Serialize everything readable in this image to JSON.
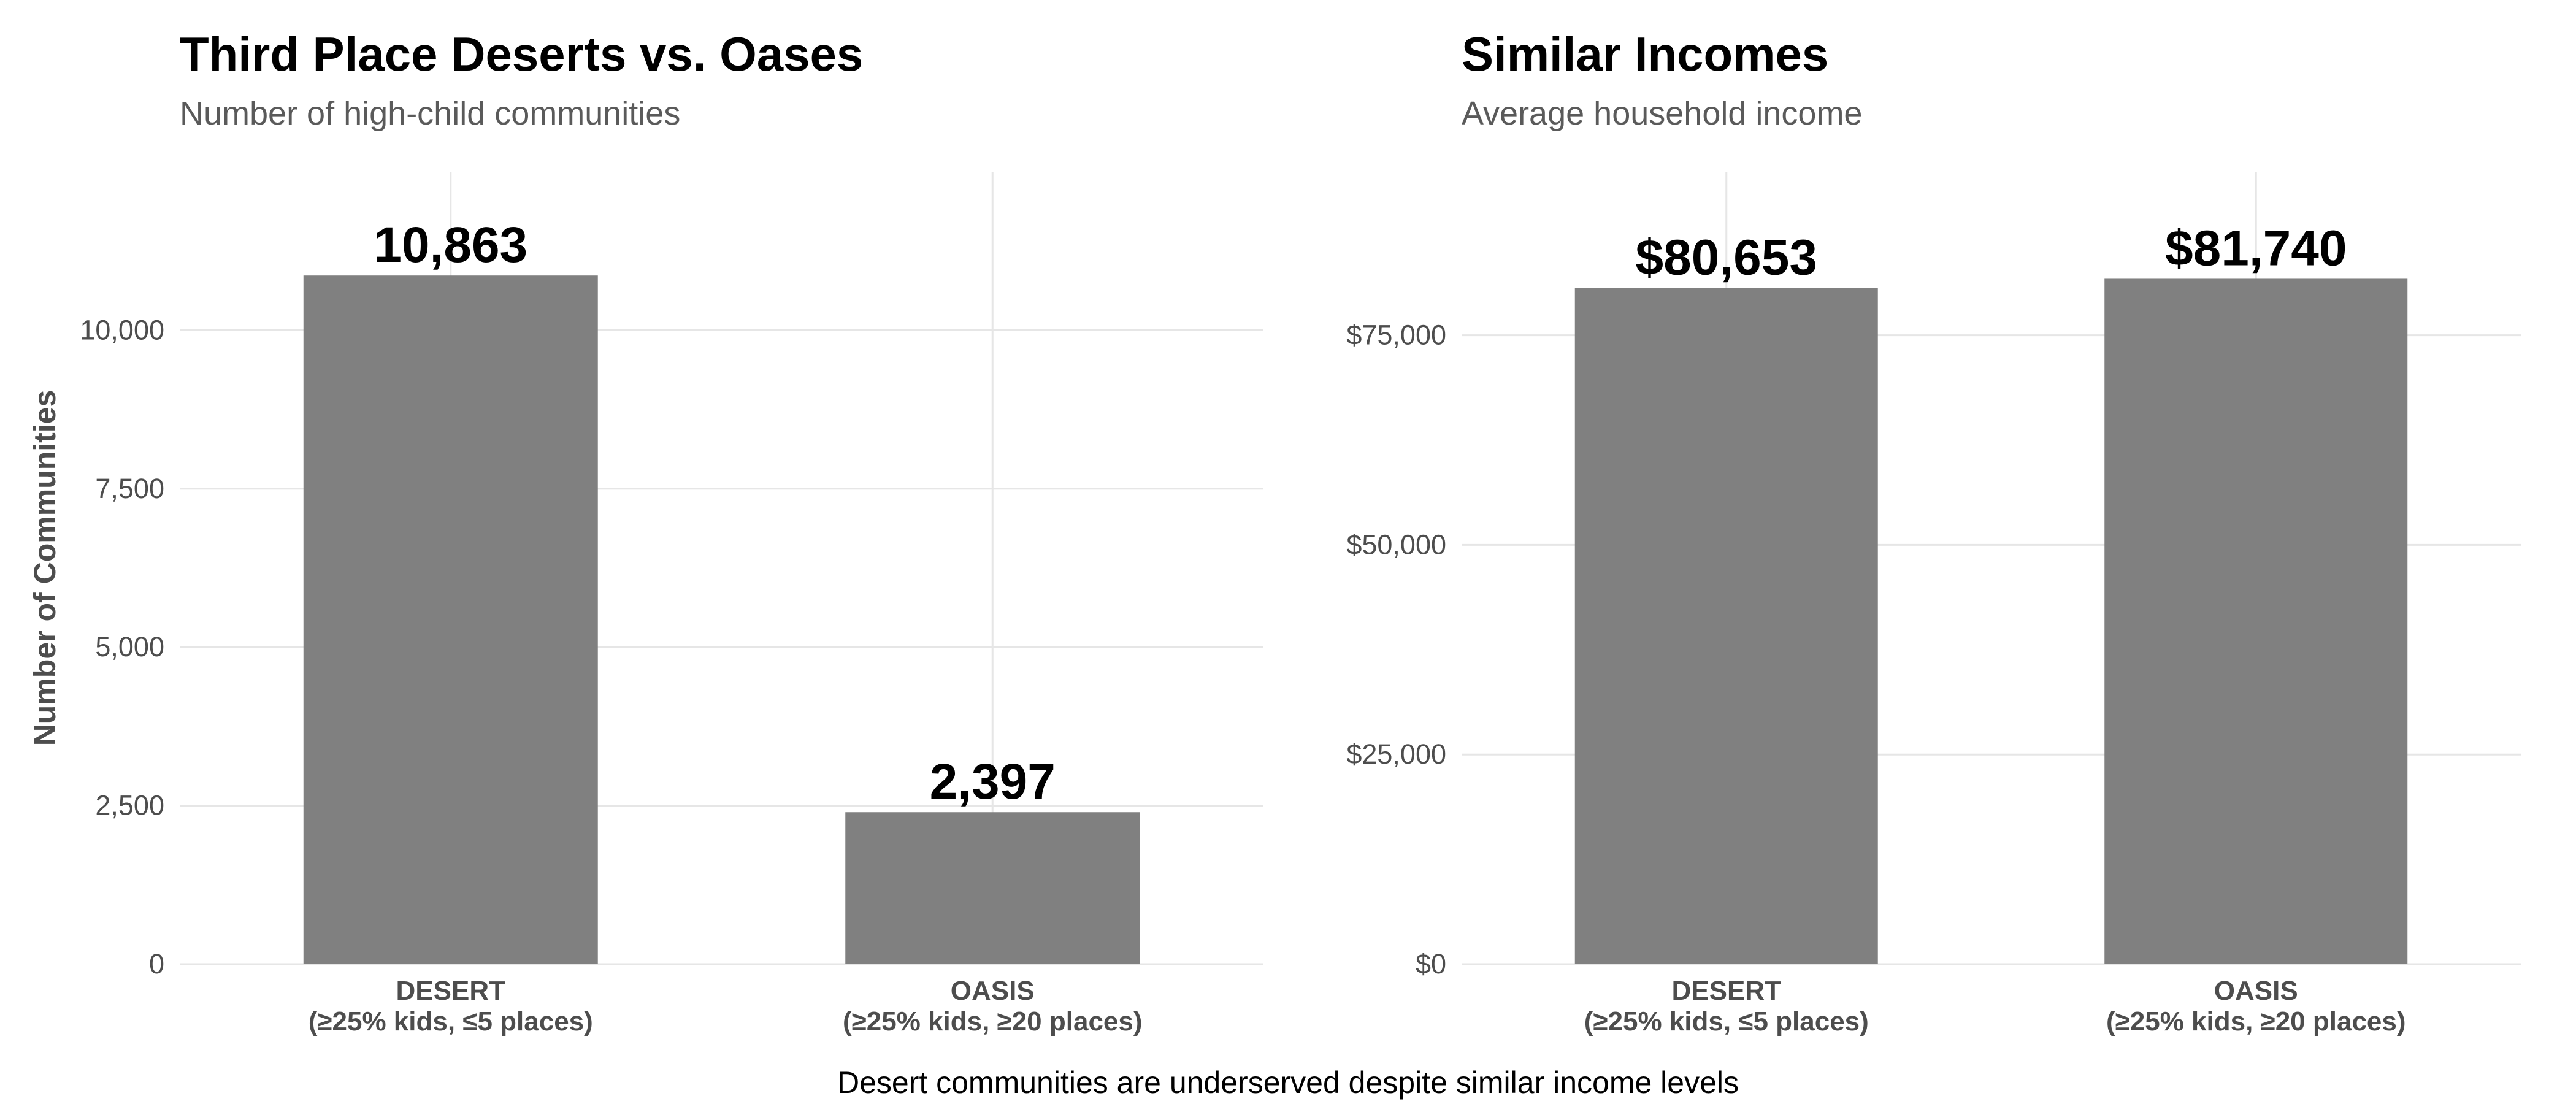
{
  "caption": "Desert communities are underserved despite similar income levels",
  "chart_data": [
    {
      "type": "bar",
      "title": "Third Place Deserts vs. Oases",
      "subtitle": "Number of high-child communities",
      "ylabel": "Number of Communities",
      "xlabel": "",
      "categories": [
        "DESERT",
        "OASIS"
      ],
      "category_sublabels": [
        "(≥25% kids, ≤5 places)",
        "(≥25% kids, ≥20 places)"
      ],
      "values": [
        10863,
        2397
      ],
      "value_labels": [
        "10,863",
        "2,397"
      ],
      "ylim": [
        0,
        12500
      ],
      "yticks": [
        0,
        2500,
        5000,
        7500,
        10000
      ],
      "ytick_labels": [
        "0",
        "2,500",
        "5,000",
        "7,500",
        "10,000"
      ],
      "grid": true,
      "bar_color": "#808080"
    },
    {
      "type": "bar",
      "title": "Similar Incomes",
      "subtitle": "Average household income",
      "ylabel": "",
      "xlabel": "",
      "categories": [
        "DESERT",
        "OASIS"
      ],
      "category_sublabels": [
        "(≥25% kids, ≤5 places)",
        "(≥25% kids, ≥20 places)"
      ],
      "values": [
        80653,
        81740
      ],
      "value_labels": [
        "$80,653",
        "$81,740"
      ],
      "ylim": [
        0,
        94500
      ],
      "yticks": [
        0,
        25000,
        50000,
        75000
      ],
      "ytick_labels": [
        "$0",
        "$25,000",
        "$50,000",
        "$75,000"
      ],
      "grid": true,
      "bar_color": "#808080"
    }
  ]
}
